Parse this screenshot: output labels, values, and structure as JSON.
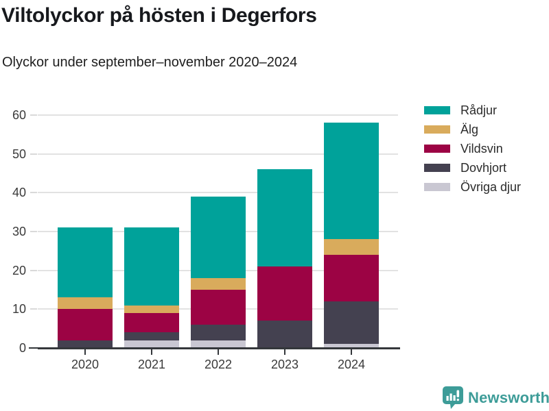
{
  "header": {
    "title": "Viltolyckor på hösten i Degerfors",
    "subtitle": "Olyckor under september–november 2020–2024"
  },
  "chart_data": {
    "type": "bar",
    "stacked": true,
    "title": "Viltolyckor på hösten i Degerfors",
    "subtitle": "Olyckor under september–november 2020–2024",
    "categories": [
      "2020",
      "2021",
      "2022",
      "2023",
      "2024"
    ],
    "series": [
      {
        "name": "Rådjur",
        "color": "#00a29a",
        "values": [
          18,
          20,
          21,
          25,
          30
        ]
      },
      {
        "name": "Älg",
        "color": "#d9ab5c",
        "values": [
          3,
          2,
          3,
          0,
          4
        ]
      },
      {
        "name": "Vildsvin",
        "color": "#9c0344",
        "values": [
          8,
          5,
          9,
          14,
          12
        ]
      },
      {
        "name": "Dovhjort",
        "color": "#444150",
        "values": [
          2,
          2,
          4,
          7,
          11
        ]
      },
      {
        "name": "Övriga djur",
        "color": "#c9c7d2",
        "values": [
          0,
          2,
          2,
          0,
          1
        ]
      }
    ],
    "stack_order_note": "series listed top-of-stack first; legend order matches",
    "totals": [
      31,
      31,
      39,
      46,
      58
    ],
    "xlabel": "",
    "ylabel": "",
    "ylim": [
      0,
      60
    ],
    "yticks": [
      0,
      10,
      20,
      30,
      40,
      50,
      60
    ],
    "grid": "horizontal",
    "legend_position": "top-right"
  },
  "footer": {
    "brand": "Newsworthy",
    "brand_color": "#3d9c98"
  }
}
